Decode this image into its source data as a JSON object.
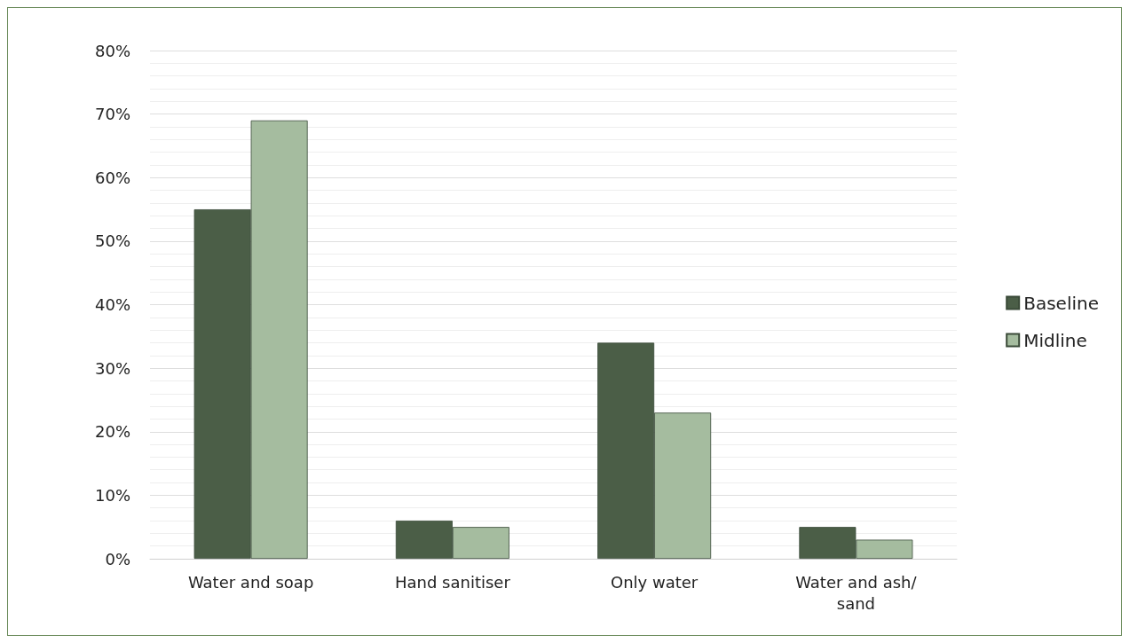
{
  "chart_data": {
    "type": "bar",
    "categories": [
      "Water and soap",
      "Hand sanitiser",
      "Only water",
      "Water and ash/sand"
    ],
    "series": [
      {
        "name": "Baseline",
        "color": "#4b5e47",
        "values": [
          55,
          6,
          34,
          5
        ]
      },
      {
        "name": "Midline",
        "color": "#a5bc9f",
        "values": [
          69,
          5,
          23,
          3
        ]
      }
    ],
    "ylim": [
      0,
      80
    ],
    "yticks": [
      {
        "value": 0,
        "label": "0%"
      },
      {
        "value": 10,
        "label": "10%"
      },
      {
        "value": 20,
        "label": "20%"
      },
      {
        "value": 30,
        "label": "30%"
      },
      {
        "value": 40,
        "label": "40%"
      },
      {
        "value": 50,
        "label": "50%"
      },
      {
        "value": 60,
        "label": "60%"
      },
      {
        "value": 70,
        "label": "70%"
      },
      {
        "value": 80,
        "label": "80%"
      }
    ],
    "grid": "y",
    "legend": "right"
  }
}
